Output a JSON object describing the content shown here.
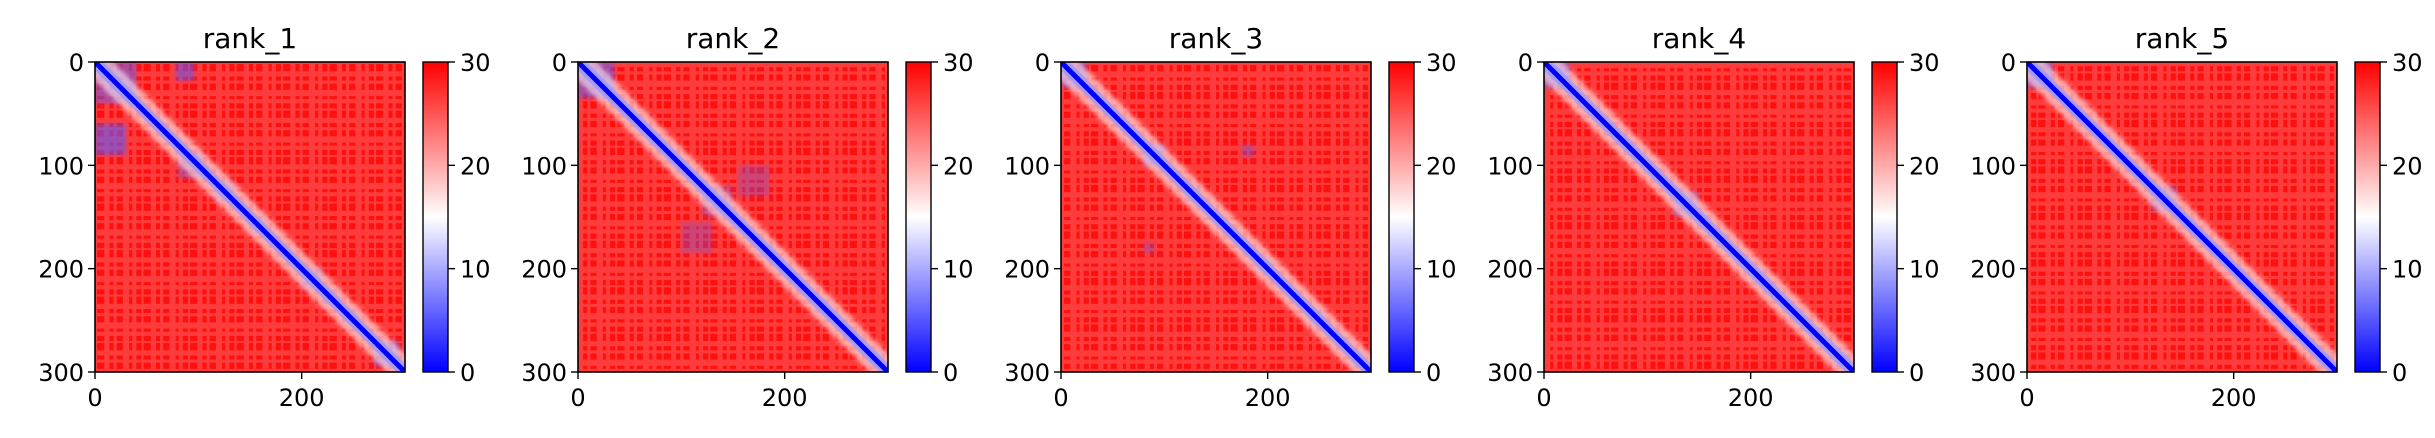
{
  "chart_data": [
    {
      "type": "heatmap",
      "title": "rank_1",
      "x_ticks": [
        "0",
        "200"
      ],
      "y_ticks": [
        "0",
        "100",
        "200",
        "300"
      ],
      "xlim": [
        0,
        300
      ],
      "ylim": [
        300,
        0
      ],
      "colorbar": {
        "ticks": [
          "0",
          "10",
          "20",
          "30"
        ],
        "range": [
          0,
          30
        ],
        "colormap": "bwr"
      },
      "blocks": [
        [
          0,
          0,
          40,
          0.5
        ],
        [
          0,
          60,
          30,
          0.6
        ],
        [
          78,
          0,
          18,
          0.55
        ],
        [
          80,
          88,
          25,
          0.35
        ],
        [
          115,
          115,
          20,
          0.3
        ],
        [
          150,
          150,
          15,
          0.35
        ],
        [
          200,
          200,
          20,
          0.35
        ],
        [
          220,
          220,
          15,
          0.3
        ],
        [
          240,
          240,
          15,
          0.3
        ],
        [
          270,
          270,
          25,
          0.45
        ]
      ]
    },
    {
      "type": "heatmap",
      "title": "rank_2",
      "x_ticks": [
        "0",
        "200"
      ],
      "y_ticks": [
        "0",
        "100",
        "200",
        "300"
      ],
      "xlim": [
        0,
        300
      ],
      "ylim": [
        300,
        0
      ],
      "colorbar": {
        "ticks": [
          "0",
          "10",
          "20",
          "30"
        ],
        "range": [
          0,
          30
        ],
        "colormap": "bwr"
      },
      "blocks": [
        [
          0,
          0,
          35,
          0.55
        ],
        [
          100,
          155,
          30,
          0.3
        ],
        [
          155,
          100,
          30,
          0.3
        ],
        [
          120,
          120,
          30,
          0.3
        ],
        [
          175,
          175,
          15,
          0.3
        ],
        [
          230,
          230,
          15,
          0.3
        ],
        [
          280,
          280,
          15,
          0.35
        ]
      ]
    },
    {
      "type": "heatmap",
      "title": "rank_3",
      "x_ticks": [
        "0",
        "200"
      ],
      "y_ticks": [
        "0",
        "100",
        "200",
        "300"
      ],
      "xlim": [
        0,
        300
      ],
      "ylim": [
        300,
        0
      ],
      "colorbar": {
        "ticks": [
          "0",
          "10",
          "20",
          "30"
        ],
        "range": [
          0,
          30
        ],
        "colormap": "bwr"
      },
      "blocks": [
        [
          0,
          0,
          25,
          0.5
        ],
        [
          80,
          80,
          20,
          0.5
        ],
        [
          80,
          175,
          10,
          0.35
        ],
        [
          175,
          80,
          12,
          0.4
        ],
        [
          120,
          120,
          15,
          0.3
        ],
        [
          190,
          190,
          15,
          0.3
        ],
        [
          240,
          240,
          15,
          0.3
        ],
        [
          280,
          280,
          15,
          0.35
        ]
      ]
    },
    {
      "type": "heatmap",
      "title": "rank_4",
      "x_ticks": [
        "0",
        "200"
      ],
      "y_ticks": [
        "0",
        "100",
        "200",
        "300"
      ],
      "xlim": [
        0,
        300
      ],
      "ylim": [
        300,
        0
      ],
      "colorbar": {
        "ticks": [
          "0",
          "10",
          "20",
          "30"
        ],
        "range": [
          0,
          30
        ],
        "colormap": "bwr"
      },
      "blocks": [
        [
          0,
          0,
          25,
          0.55
        ],
        [
          125,
          125,
          25,
          0.35
        ],
        [
          145,
          145,
          12,
          0.3
        ],
        [
          200,
          200,
          15,
          0.25
        ],
        [
          240,
          240,
          12,
          0.25
        ],
        [
          280,
          280,
          15,
          0.3
        ]
      ]
    },
    {
      "type": "heatmap",
      "title": "rank_5",
      "x_ticks": [
        "0",
        "200"
      ],
      "y_ticks": [
        "0",
        "100",
        "200",
        "300"
      ],
      "xlim": [
        0,
        300
      ],
      "ylim": [
        300,
        0
      ],
      "colorbar": {
        "ticks": [
          "0",
          "10",
          "20",
          "30"
        ],
        "range": [
          0,
          30
        ],
        "colormap": "bwr"
      },
      "blocks": [
        [
          0,
          0,
          25,
          0.55
        ],
        [
          120,
          120,
          25,
          0.35
        ],
        [
          150,
          150,
          12,
          0.25
        ],
        [
          200,
          200,
          12,
          0.25
        ],
        [
          250,
          250,
          12,
          0.25
        ],
        [
          280,
          280,
          15,
          0.3
        ]
      ]
    }
  ]
}
